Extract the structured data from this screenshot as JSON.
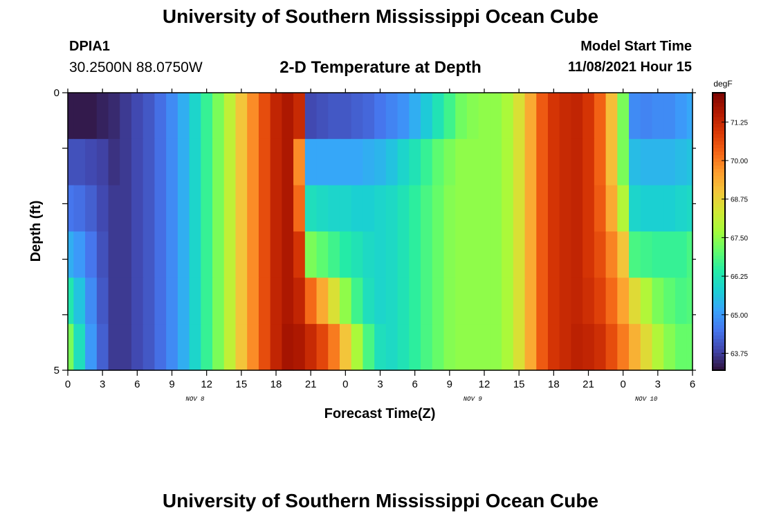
{
  "header": {
    "title": "University of Southern Mississippi Ocean Cube",
    "station": "DPIA1",
    "coordinates": "30.2500N  88.0750W",
    "plot_title": "2-D Temperature at Depth",
    "model_start_label": "Model Start Time",
    "model_start_value": "11/08/2021 Hour 15"
  },
  "footer": {
    "title": "University of Southern Mississippi Ocean Cube"
  },
  "chart_data": {
    "type": "heatmap",
    "title": "2-D Temperature at Depth",
    "xlabel": "Forecast Time(Z)",
    "ylabel": "Depth (ft)",
    "x_tick_labels": [
      "0",
      "3",
      "6",
      "9",
      "12",
      "15",
      "18",
      "21",
      "0",
      "3",
      "6",
      "9",
      "12",
      "15",
      "18",
      "21",
      "0",
      "3",
      "6"
    ],
    "date_labels": [
      {
        "label": "NOV 8",
        "at_hour": 11
      },
      {
        "label": "NOV 9",
        "at_hour": 35
      },
      {
        "label": "NOV 10",
        "at_hour": 50
      }
    ],
    "x_range_hours": [
      0,
      54
    ],
    "y_tick_labels": [
      "0",
      "5"
    ],
    "y_range": [
      0,
      5
    ],
    "colorbar": {
      "unit": "degF",
      "tick_labels": [
        "71.25",
        "70.00",
        "68.75",
        "67.50",
        "66.25",
        "65.00",
        "63.75"
      ],
      "ticks": [
        71.25,
        70.0,
        68.75,
        67.5,
        66.25,
        65.0,
        63.75
      ],
      "min": 63.2,
      "max": 72.2,
      "colors": [
        "#30123b",
        "#4145ab",
        "#4675ed",
        "#39a2fc",
        "#1bcfd4",
        "#24eca6",
        "#61fc6c",
        "#a4fc3b",
        "#d1e834",
        "#f3c63a",
        "#fe9b2d",
        "#f36315",
        "#d93806",
        "#b11901",
        "#7a0402"
      ]
    },
    "depth_layers": [
      0,
      1,
      2,
      3,
      4,
      5
    ],
    "series": [
      {
        "depth": 0,
        "hour": [
          0,
          1,
          2,
          3,
          4,
          5,
          6,
          7,
          8,
          9,
          10,
          11,
          12,
          13,
          14,
          15,
          16,
          17,
          18,
          19,
          20,
          21,
          22,
          23,
          24,
          25,
          26,
          27,
          28,
          29,
          30,
          31,
          32,
          33,
          34,
          35,
          36,
          37,
          38,
          39,
          40,
          41,
          42,
          43,
          44,
          45,
          46,
          47,
          48,
          49,
          50,
          51,
          52,
          53,
          54
        ],
        "values": [
          63.3,
          63.3,
          63.3,
          63.4,
          63.5,
          63.7,
          63.9,
          64.1,
          64.4,
          64.8,
          65.3,
          65.9,
          66.6,
          67.3,
          68.1,
          69.0,
          69.8,
          70.6,
          71.3,
          71.6,
          71.2,
          63.9,
          64.0,
          64.1,
          64.1,
          64.2,
          64.3,
          64.5,
          64.7,
          64.9,
          65.3,
          65.7,
          66.2,
          66.7,
          67.2,
          67.4,
          67.5,
          67.5,
          67.8,
          68.5,
          69.4,
          70.4,
          71.0,
          71.2,
          71.3,
          71.0,
          70.3,
          69.1,
          67.3,
          64.8,
          64.7,
          64.8,
          64.8,
          65.0,
          65.2
        ]
      },
      {
        "depth": 1,
        "hour": [
          0,
          1,
          2,
          3,
          4,
          5,
          6,
          7,
          8,
          9,
          10,
          11,
          12,
          13,
          14,
          15,
          16,
          17,
          18,
          19,
          20,
          21,
          22,
          23,
          24,
          25,
          26,
          27,
          28,
          29,
          30,
          31,
          32,
          33,
          34,
          35,
          36,
          37,
          38,
          39,
          40,
          41,
          42,
          43,
          44,
          45,
          46,
          47,
          48,
          49,
          50,
          51,
          52,
          53,
          54
        ],
        "values": [
          64.0,
          64.0,
          63.9,
          63.8,
          63.6,
          63.7,
          63.9,
          64.1,
          64.4,
          64.8,
          65.3,
          65.9,
          66.6,
          67.3,
          68.1,
          69.0,
          69.8,
          70.6,
          71.3,
          71.6,
          69.8,
          65.2,
          65.2,
          65.2,
          65.2,
          65.2,
          65.3,
          65.4,
          65.6,
          65.9,
          66.2,
          66.6,
          67.0,
          67.3,
          67.5,
          67.5,
          67.5,
          67.5,
          67.8,
          68.5,
          69.4,
          70.4,
          71.0,
          71.2,
          71.3,
          71.0,
          70.3,
          69.1,
          67.3,
          65.5,
          65.4,
          65.4,
          65.4,
          65.5,
          65.6
        ]
      },
      {
        "depth": 2,
        "hour": [
          0,
          1,
          2,
          3,
          4,
          5,
          6,
          7,
          8,
          9,
          10,
          11,
          12,
          13,
          14,
          15,
          16,
          17,
          18,
          19,
          20,
          21,
          22,
          23,
          24,
          25,
          26,
          27,
          28,
          29,
          30,
          31,
          32,
          33,
          34,
          35,
          36,
          37,
          38,
          39,
          40,
          41,
          42,
          43,
          44,
          45,
          46,
          47,
          48,
          49,
          50,
          51,
          52,
          53,
          54
        ],
        "values": [
          64.5,
          64.4,
          64.2,
          63.9,
          63.7,
          63.7,
          63.9,
          64.1,
          64.4,
          64.8,
          65.3,
          65.9,
          66.6,
          67.3,
          68.1,
          69.0,
          69.8,
          70.6,
          71.3,
          71.6,
          70.2,
          66.1,
          66.0,
          65.9,
          65.9,
          65.8,
          65.8,
          65.9,
          66.0,
          66.2,
          66.5,
          66.8,
          67.1,
          67.4,
          67.5,
          67.5,
          67.5,
          67.5,
          67.8,
          68.5,
          69.4,
          70.4,
          71.0,
          71.2,
          71.3,
          71.0,
          70.4,
          69.4,
          67.9,
          65.9,
          65.8,
          65.8,
          65.8,
          65.9,
          66.0
        ]
      },
      {
        "depth": 3,
        "hour": [
          0,
          1,
          2,
          3,
          4,
          5,
          6,
          7,
          8,
          9,
          10,
          11,
          12,
          13,
          14,
          15,
          16,
          17,
          18,
          19,
          20,
          21,
          22,
          23,
          24,
          25,
          26,
          27,
          28,
          29,
          30,
          31,
          32,
          33,
          34,
          35,
          36,
          37,
          38,
          39,
          40,
          41,
          42,
          43,
          44,
          45,
          46,
          47,
          48,
          49,
          50,
          51,
          52,
          53,
          54
        ],
        "values": [
          65.3,
          65.0,
          64.5,
          64.0,
          63.7,
          63.7,
          63.9,
          64.1,
          64.4,
          64.8,
          65.3,
          65.9,
          66.6,
          67.3,
          68.1,
          69.0,
          69.8,
          70.6,
          71.3,
          71.6,
          71.0,
          67.3,
          67.0,
          66.7,
          66.4,
          66.2,
          66.0,
          65.9,
          66.0,
          66.2,
          66.5,
          66.8,
          67.1,
          67.4,
          67.5,
          67.5,
          67.5,
          67.5,
          67.8,
          68.5,
          69.4,
          70.4,
          71.0,
          71.2,
          71.3,
          71.0,
          70.6,
          69.9,
          69.0,
          66.8,
          66.7,
          66.6,
          66.6,
          66.6,
          66.8
        ]
      },
      {
        "depth": 4,
        "hour": [
          0,
          1,
          2,
          3,
          4,
          5,
          6,
          7,
          8,
          9,
          10,
          11,
          12,
          13,
          14,
          15,
          16,
          17,
          18,
          19,
          20,
          21,
          22,
          23,
          24,
          25,
          26,
          27,
          28,
          29,
          30,
          31,
          32,
          33,
          34,
          35,
          36,
          37,
          38,
          39,
          40,
          41,
          42,
          43,
          44,
          45,
          46,
          47,
          48,
          49,
          50,
          51,
          52,
          53,
          54
        ],
        "values": [
          66.3,
          65.6,
          64.8,
          64.1,
          63.7,
          63.7,
          63.9,
          64.1,
          64.4,
          64.8,
          65.3,
          65.9,
          66.6,
          67.3,
          68.1,
          69.0,
          69.8,
          70.6,
          71.3,
          71.6,
          71.3,
          70.2,
          69.4,
          68.5,
          67.5,
          66.7,
          66.1,
          65.9,
          66.0,
          66.2,
          66.5,
          66.8,
          67.1,
          67.4,
          67.5,
          67.5,
          67.5,
          67.5,
          67.8,
          68.5,
          69.4,
          70.4,
          71.0,
          71.2,
          71.3,
          71.1,
          70.8,
          70.2,
          69.5,
          68.6,
          67.9,
          67.3,
          67.0,
          66.8,
          66.9
        ]
      },
      {
        "depth": 5,
        "hour": [
          0,
          1,
          2,
          3,
          4,
          5,
          6,
          7,
          8,
          9,
          10,
          11,
          12,
          13,
          14,
          15,
          16,
          17,
          18,
          19,
          20,
          21,
          22,
          23,
          24,
          25,
          26,
          27,
          28,
          29,
          30,
          31,
          32,
          33,
          34,
          35,
          36,
          37,
          38,
          39,
          40,
          41,
          42,
          43,
          44,
          45,
          46,
          47,
          48,
          49,
          50,
          51,
          52,
          53,
          54
        ],
        "values": [
          67.3,
          66.1,
          65.0,
          64.2,
          63.7,
          63.7,
          63.9,
          64.1,
          64.4,
          64.8,
          65.3,
          65.9,
          66.6,
          67.3,
          68.1,
          69.0,
          69.8,
          70.6,
          71.3,
          71.7,
          71.6,
          71.2,
          70.7,
          70.0,
          69.0,
          67.8,
          66.8,
          66.1,
          66.0,
          66.2,
          66.5,
          66.8,
          67.1,
          67.4,
          67.5,
          67.5,
          67.5,
          67.5,
          67.8,
          68.5,
          69.4,
          70.4,
          71.0,
          71.2,
          71.4,
          71.3,
          71.1,
          70.6,
          70.0,
          69.3,
          68.6,
          67.9,
          67.4,
          67.1,
          67.1
        ]
      }
    ]
  }
}
